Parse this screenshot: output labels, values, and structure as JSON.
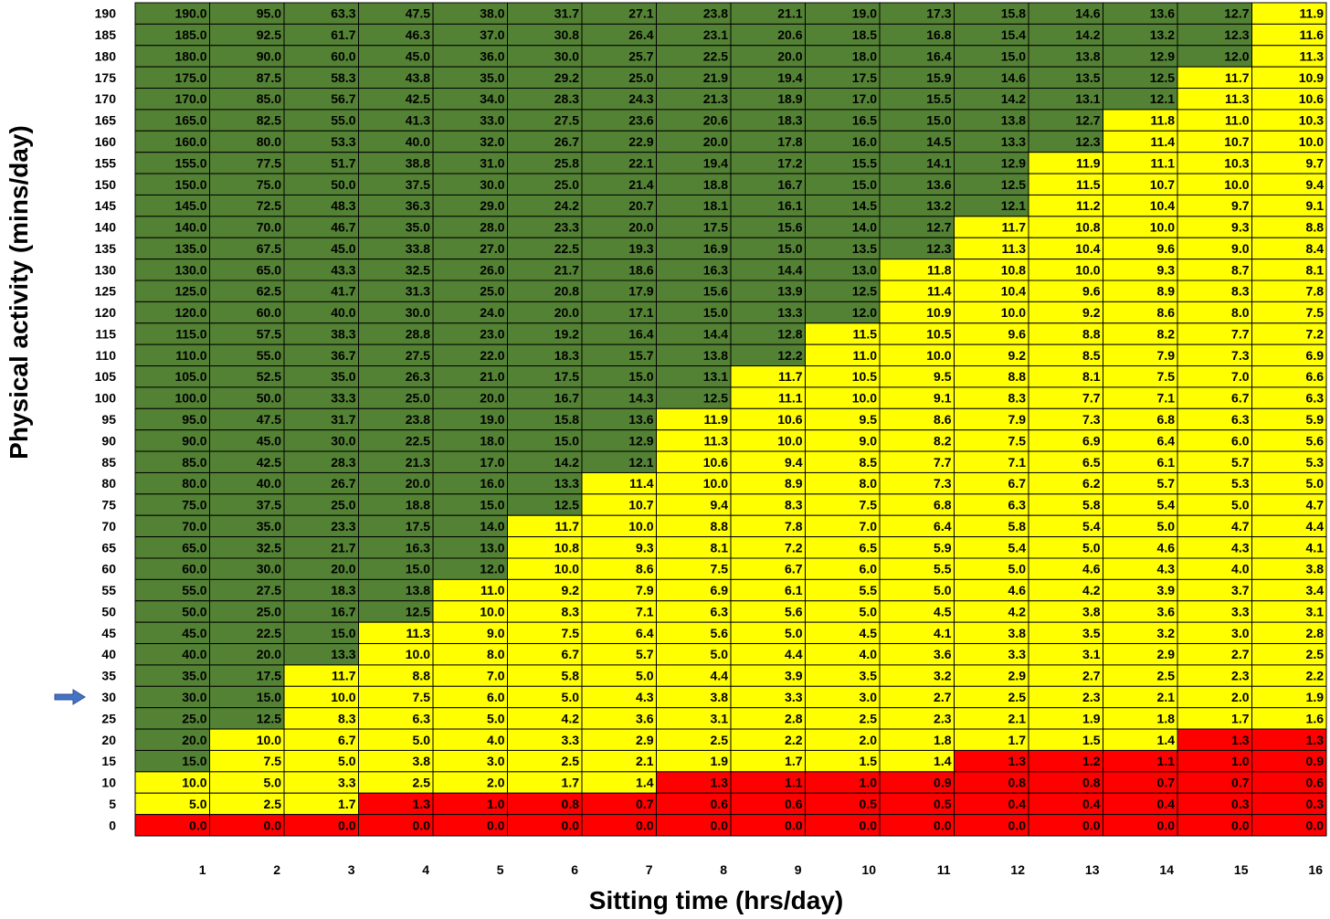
{
  "chart_data": {
    "type": "heatmap",
    "xlabel": "Sitting time (hrs/day)",
    "ylabel": "Physical activity (mins/day)",
    "x": [
      1,
      2,
      3,
      4,
      5,
      6,
      7,
      8,
      9,
      10,
      11,
      12,
      13,
      14,
      15,
      16
    ],
    "y": [
      190,
      185,
      180,
      175,
      170,
      165,
      160,
      155,
      150,
      145,
      140,
      135,
      130,
      125,
      120,
      115,
      110,
      105,
      100,
      95,
      90,
      85,
      80,
      75,
      70,
      65,
      60,
      55,
      50,
      45,
      40,
      35,
      30,
      25,
      20,
      15,
      10,
      5,
      0
    ],
    "cell_value": "physical activity (mins/day) divided by sitting time (hrs/day)",
    "value_decimals": 1,
    "color_bands": [
      {
        "color": "#ff0000",
        "min": 0.0,
        "max": 1.35
      },
      {
        "color": "#ffff00",
        "min": 1.35,
        "max": 12.0
      },
      {
        "color": "#548235",
        "min": 12.0,
        "max": 190.0
      }
    ],
    "highlight_row": 30,
    "highlight_marker": "arrow-right-icon",
    "grid": true,
    "legend": "none"
  }
}
